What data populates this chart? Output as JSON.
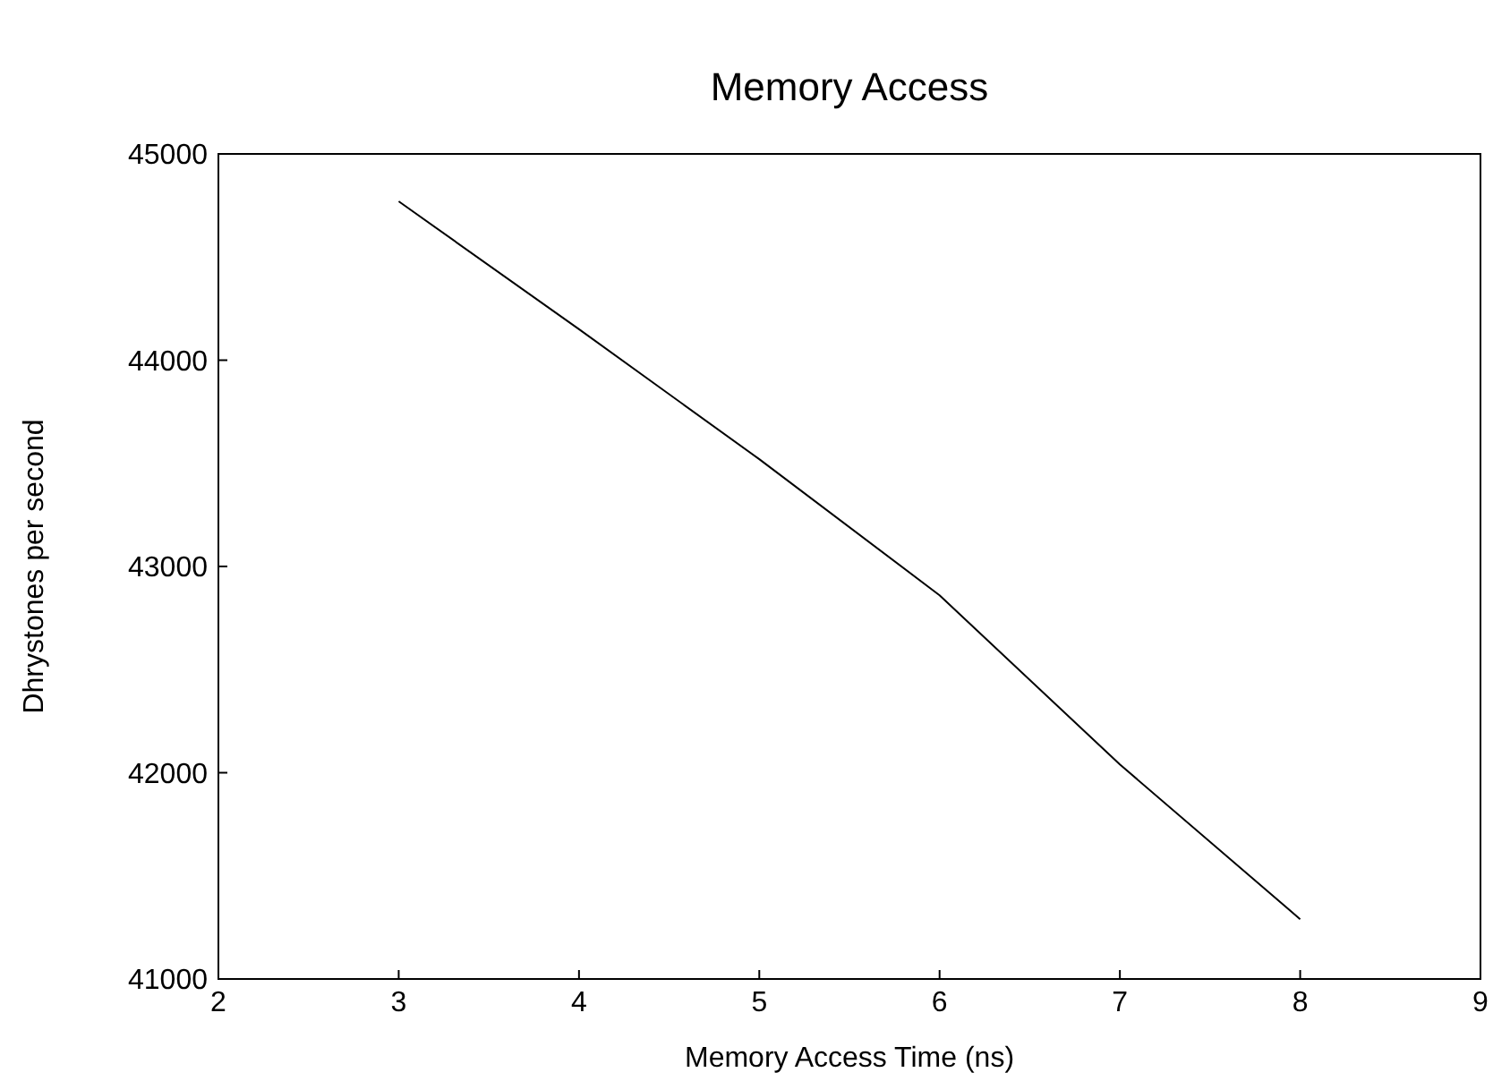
{
  "chart_data": {
    "type": "line",
    "title": "Memory Access",
    "xlabel": "Memory Access Time (ns)",
    "ylabel": "Dhrystones per second",
    "x": [
      3,
      4,
      5,
      6,
      7,
      8
    ],
    "series": [
      {
        "color": "#000000",
        "values": [
          44770,
          44150,
          43520,
          42860,
          42040,
          41290
        ]
      }
    ],
    "xlim": [
      2,
      9
    ],
    "xticks": [
      2,
      3,
      4,
      5,
      6,
      7,
      8,
      9
    ],
    "ylim": [
      41000,
      45000
    ],
    "yticks": [
      41000,
      42000,
      43000,
      44000,
      45000
    ],
    "grid": false,
    "marker": "none",
    "line_style": "solid"
  }
}
